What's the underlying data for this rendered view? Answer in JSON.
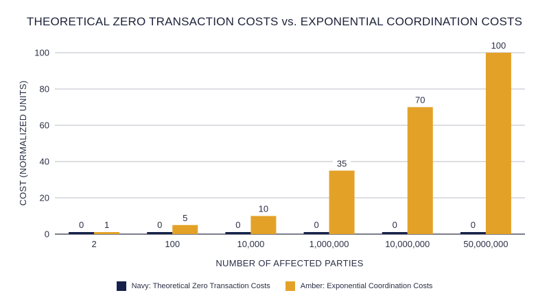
{
  "chart_data": {
    "type": "bar",
    "title": "THEORETICAL ZERO TRANSACTION COSTS vs. EXPONENTIAL COORDINATION COSTS",
    "xlabel": "NUMBER OF AFFECTED PARTIES",
    "ylabel": "COST (NORMALIZED UNITS)",
    "categories": [
      "2",
      "100",
      "10,000",
      "1,000,000",
      "10,000,000",
      "50,000,000"
    ],
    "ylim": [
      0,
      100
    ],
    "yticks": [
      0,
      20,
      40,
      60,
      80,
      100
    ],
    "grid": true,
    "legend_position": "bottom",
    "series": [
      {
        "name": "Navy: Theoretical Zero Transaction Costs",
        "color": "#16224a",
        "values": [
          0,
          0,
          0,
          0,
          0,
          0
        ]
      },
      {
        "name": "Amber: Exponential Coordination Costs",
        "color": "#e3a227",
        "values": [
          1,
          5,
          10,
          35,
          70,
          100
        ]
      }
    ]
  }
}
